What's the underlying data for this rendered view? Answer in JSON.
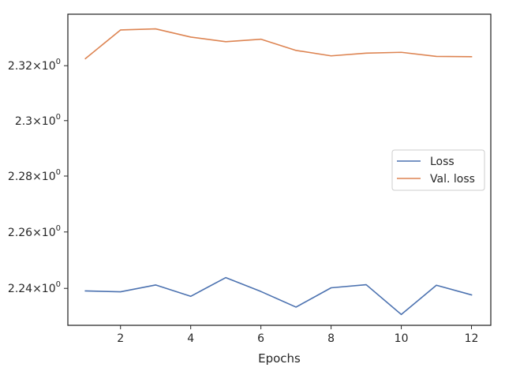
{
  "chart_data": {
    "type": "line",
    "title": "",
    "xlabel": "Epochs",
    "ylabel": "",
    "x": [
      1,
      2,
      3,
      4,
      5,
      6,
      7,
      8,
      9,
      10,
      11,
      12
    ],
    "series": [
      {
        "name": "Loss",
        "color": "#4c72b0",
        "values": [
          2.2391,
          2.2388,
          2.2412,
          2.2372,
          2.2438,
          2.2389,
          2.2334,
          2.2402,
          2.2413,
          2.2308,
          2.2411,
          2.2377
        ]
      },
      {
        "name": "Val. loss",
        "color": "#dd8452",
        "values": [
          2.3226,
          2.3331,
          2.3335,
          2.3305,
          2.3288,
          2.3297,
          2.3256,
          2.3236,
          2.3246,
          2.3249,
          2.3234,
          2.3233
        ]
      }
    ],
    "xlim": [
      0.5,
      12.55
    ],
    "ylim": [
      2.227,
      2.3389
    ],
    "yscale": "log",
    "xticks": [
      2,
      4,
      6,
      8,
      10,
      12
    ],
    "xtick_labels": [
      "2",
      "4",
      "6",
      "8",
      "10",
      "12"
    ],
    "yticks": [
      2.24,
      2.26,
      2.28,
      2.3,
      2.32
    ],
    "ytick_labels": [
      {
        "mantissa": "2.24",
        "base": "10",
        "exp": "0"
      },
      {
        "mantissa": "2.26",
        "base": "10",
        "exp": "0"
      },
      {
        "mantissa": "2.28",
        "base": "10",
        "exp": "0"
      },
      {
        "mantissa": "2.3",
        "base": "10",
        "exp": "0"
      },
      {
        "mantissa": "2.32",
        "base": "10",
        "exp": "0"
      }
    ],
    "grid": false,
    "legend_position": "center-right"
  }
}
